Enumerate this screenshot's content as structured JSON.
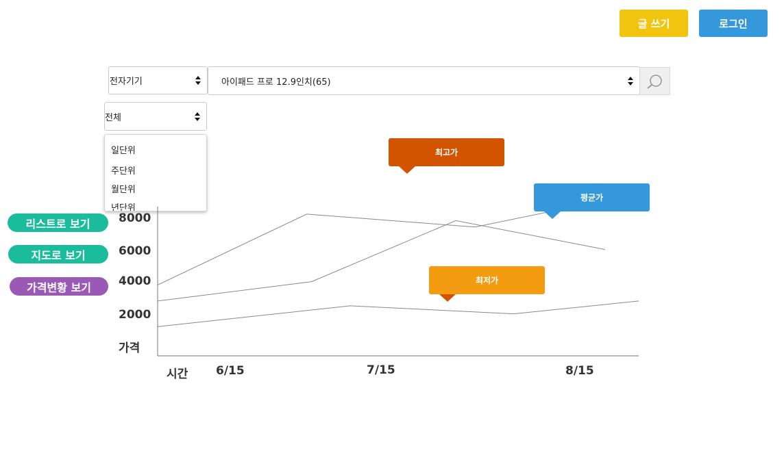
{
  "header": {
    "write_button": "글 쓰기",
    "login_button": "로그인",
    "write_color": "#f1c40f",
    "login_color": "#3498db"
  },
  "filters": {
    "category": "전자기기",
    "product": "아이패드 프로 12.9인치(65)",
    "period": "전체",
    "period_options": [
      "일단위",
      "주단위",
      "월단위",
      "년단위"
    ]
  },
  "icons": {
    "search": "search-icon"
  },
  "side_buttons": [
    {
      "label": "리스트로 보기",
      "color": "#1abc9c"
    },
    {
      "label": "지도로 보기",
      "color": "#1abc9c"
    },
    {
      "label": "가격변황 보기",
      "color": "#9b59b6"
    }
  ],
  "chart_data": {
    "type": "line",
    "xlabel": "시간",
    "ylabel": "가격",
    "x_ticks": [
      "6/15",
      "7/15",
      "8/15"
    ],
    "y_ticks": [
      "2000",
      "4000",
      "6000",
      "8000"
    ],
    "series": [
      {
        "name": "최고가",
        "color": "#d35400",
        "values": [
          [
            0,
            3900
          ],
          [
            0.31,
            8300
          ],
          [
            0.66,
            7500
          ],
          [
            1,
            9600
          ]
        ]
      },
      {
        "name": "평균가",
        "color": "#3498db",
        "values": [
          [
            0,
            2900
          ],
          [
            0.32,
            4100
          ],
          [
            0.62,
            7900
          ],
          [
            0.93,
            6100
          ]
        ]
      },
      {
        "name": "최저가",
        "color": "#f39c12",
        "values": [
          [
            0,
            1300
          ],
          [
            0.4,
            2600
          ],
          [
            0.74,
            2100
          ],
          [
            1,
            2900
          ]
        ]
      }
    ],
    "grid": false
  }
}
